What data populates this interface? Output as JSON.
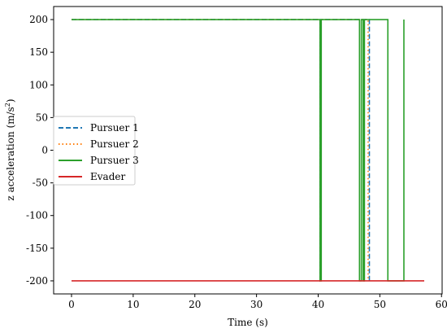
{
  "chart_data": {
    "type": "line",
    "xlabel": "Time (s)",
    "ylabel_main": "z acceleration (m/s",
    "ylabel_sup": "2",
    "ylabel_end": ")",
    "xlim": [
      -2.9,
      60.1
    ],
    "ylim": [
      -220,
      220
    ],
    "xticks": [
      0,
      10,
      20,
      30,
      40,
      50,
      60
    ],
    "yticks": [
      -200,
      -150,
      -100,
      -50,
      0,
      50,
      100,
      150,
      200
    ],
    "grid": false,
    "legend_position": "center-left",
    "series": [
      {
        "name": "Pursuer 1",
        "color": "#1f77b4",
        "dash": "dashed",
        "x": [
          0,
          40.3,
          40.3,
          40.4,
          40.4,
          48.3,
          48.3
        ],
        "y": [
          200,
          200,
          -200,
          -200,
          200,
          200,
          -200
        ]
      },
      {
        "name": "Pursuer 2",
        "color": "#ff7f0e",
        "dash": "dotted",
        "x": [
          0,
          40.3,
          40.3,
          40.4,
          40.4,
          48.1,
          48.1
        ],
        "y": [
          200,
          200,
          -200,
          -200,
          200,
          200,
          -200
        ]
      },
      {
        "name": "Pursuer 3",
        "color": "#2ca02c",
        "dash": "solid",
        "x": [
          0,
          40.3,
          40.3,
          40.5,
          40.5,
          46.7,
          46.7,
          47.0,
          47.0,
          47.3,
          47.3,
          47.5,
          47.5,
          51.3,
          51.3,
          53.9,
          53.9
        ],
        "y": [
          200,
          200,
          -200,
          -200,
          200,
          200,
          -200,
          -200,
          200,
          200,
          -200,
          -200,
          200,
          200,
          -200,
          -200,
          200
        ]
      },
      {
        "name": "Evader",
        "color": "#d62728",
        "dash": "solid",
        "x": [
          0,
          57.2
        ],
        "y": [
          -200,
          -200
        ]
      }
    ]
  }
}
